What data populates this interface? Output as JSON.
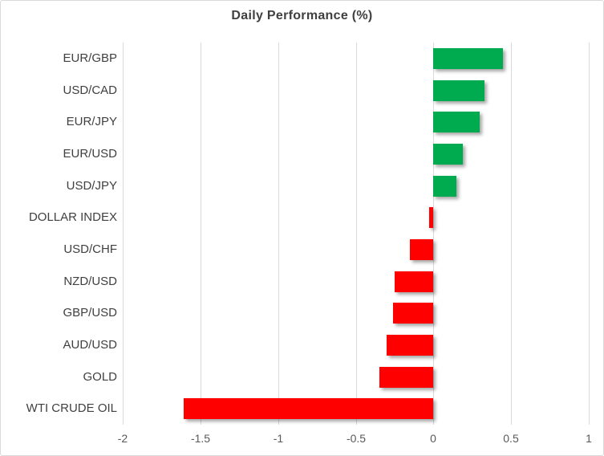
{
  "window": {
    "background": "#ffffff",
    "border_color": "#d9d9d9"
  },
  "chart_data": {
    "type": "bar",
    "orientation": "horizontal",
    "title": "Daily Performance (%)",
    "categories": [
      "EUR/GBP",
      "USD/CAD",
      "EUR/JPY",
      "EUR/USD",
      "USD/JPY",
      "DOLLAR INDEX",
      "USD/CHF",
      "NZD/USD",
      "GBP/USD",
      "AUD/USD",
      "GOLD",
      "WTI CRUDE OIL"
    ],
    "values": [
      0.45,
      0.33,
      0.3,
      0.19,
      0.15,
      -0.03,
      -0.15,
      -0.25,
      -0.26,
      -0.3,
      -0.35,
      -1.61
    ],
    "xlabel": "",
    "ylabel": "",
    "xlim": [
      -2,
      1
    ],
    "x_ticks": [
      -2,
      -1.5,
      -1,
      -0.5,
      0,
      0.5,
      1
    ],
    "x_tick_labels": [
      "-2",
      "-1.5",
      "-1",
      "-0.5",
      "0",
      "0.5",
      "1"
    ],
    "grid": true,
    "legend": false,
    "colors": {
      "positive": "#00ab50",
      "negative": "#ff0000",
      "gridline": "#d9d9d9",
      "title_text": "#404040",
      "category_text": "#404040",
      "tick_text": "#595959"
    }
  }
}
